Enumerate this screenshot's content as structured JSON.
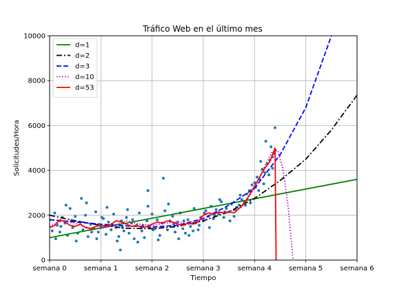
{
  "chart_data": {
    "type": "scatter",
    "title": "Tráfico Web en el último mes",
    "xlabel": "Tiempo",
    "ylabel": "Solicitudes/Hora",
    "xlim": [
      0,
      6
    ],
    "ylim": [
      0,
      10000
    ],
    "grid": true,
    "legend_position": "upper-left",
    "x_ticks": [
      {
        "value": 0,
        "label": "semana 0"
      },
      {
        "value": 1,
        "label": "semana 1"
      },
      {
        "value": 2,
        "label": "semana 2"
      },
      {
        "value": 3,
        "label": "semana 3"
      },
      {
        "value": 4,
        "label": "semana 4"
      },
      {
        "value": 5,
        "label": "semana 5"
      },
      {
        "value": 6,
        "label": "semana 6"
      }
    ],
    "y_ticks": [
      {
        "value": 0,
        "label": "0"
      },
      {
        "value": 2000,
        "label": "2000"
      },
      {
        "value": 4000,
        "label": "4000"
      },
      {
        "value": 6000,
        "label": "6000"
      },
      {
        "value": 8000,
        "label": "8000"
      },
      {
        "value": 10000,
        "label": "10000"
      }
    ],
    "scatter": {
      "color": "#1f77b4",
      "points": [
        [
          0.0,
          1800
        ],
        [
          0.05,
          1300
        ],
        [
          0.1,
          2100
        ],
        [
          0.15,
          1550
        ],
        [
          0.2,
          1250
        ],
        [
          0.25,
          1900
        ],
        [
          0.3,
          1650
        ],
        [
          0.35,
          1100
        ],
        [
          0.4,
          2300
        ],
        [
          0.45,
          1450
        ],
        [
          0.5,
          1950
        ],
        [
          0.55,
          1200
        ],
        [
          0.6,
          1700
        ],
        [
          0.65,
          1350
        ],
        [
          0.7,
          2000
        ],
        [
          0.75,
          1050
        ],
        [
          0.8,
          1600
        ],
        [
          0.85,
          1400
        ],
        [
          0.9,
          2150
        ],
        [
          0.95,
          1250
        ],
        [
          1.0,
          1500
        ],
        [
          1.05,
          1850
        ],
        [
          1.1,
          1150
        ],
        [
          1.15,
          1700
        ],
        [
          1.2,
          1350
        ],
        [
          1.25,
          2050
        ],
        [
          1.3,
          1450
        ],
        [
          1.35,
          1050
        ],
        [
          1.4,
          1750
        ],
        [
          1.45,
          1300
        ],
        [
          1.5,
          1900
        ],
        [
          1.55,
          1200
        ],
        [
          1.6,
          1650
        ],
        [
          1.65,
          950
        ],
        [
          1.7,
          1550
        ],
        [
          1.75,
          2100
        ],
        [
          1.8,
          1300
        ],
        [
          1.85,
          1000
        ],
        [
          1.9,
          1750
        ],
        [
          1.95,
          1450
        ],
        [
          2.0,
          2050
        ],
        [
          2.05,
          1400
        ],
        [
          2.1,
          1800
        ],
        [
          2.15,
          1100
        ],
        [
          2.2,
          1650
        ],
        [
          2.25,
          2200
        ],
        [
          2.3,
          1350
        ],
        [
          2.35,
          1750
        ],
        [
          2.4,
          1950
        ],
        [
          2.45,
          1250
        ],
        [
          2.5,
          1700
        ],
        [
          2.55,
          2100
        ],
        [
          2.6,
          1400
        ],
        [
          2.65,
          1200
        ],
        [
          2.7,
          1800
        ],
        [
          2.75,
          1500
        ],
        [
          2.8,
          1300
        ],
        [
          2.85,
          1650
        ],
        [
          2.9,
          1350
        ],
        [
          2.95,
          1900
        ],
        [
          3.0,
          1750
        ],
        [
          3.05,
          2200
        ],
        [
          3.1,
          1950
        ],
        [
          3.15,
          2400
        ],
        [
          3.2,
          1850
        ],
        [
          3.25,
          2250
        ],
        [
          3.3,
          2050
        ],
        [
          3.35,
          2600
        ],
        [
          3.4,
          1900
        ],
        [
          3.45,
          2300
        ],
        [
          3.5,
          2150
        ],
        [
          3.55,
          2500
        ],
        [
          3.6,
          1950
        ],
        [
          3.65,
          2350
        ],
        [
          3.7,
          2450
        ],
        [
          3.75,
          2700
        ],
        [
          3.8,
          2600
        ],
        [
          3.85,
          2950
        ],
        [
          3.9,
          3100
        ],
        [
          3.95,
          3350
        ],
        [
          4.0,
          3450
        ],
        [
          4.05,
          3700
        ],
        [
          4.1,
          3600
        ],
        [
          4.15,
          4050
        ],
        [
          4.2,
          3900
        ],
        [
          4.25,
          4300
        ],
        [
          4.3,
          4450
        ],
        [
          4.35,
          4600
        ],
        [
          4.38,
          4750
        ],
        [
          4.4,
          4900
        ],
        [
          0.12,
          950
        ],
        [
          0.32,
          2450
        ],
        [
          0.52,
          850
        ],
        [
          0.72,
          2550
        ],
        [
          0.92,
          950
        ],
        [
          1.12,
          2350
        ],
        [
          1.32,
          850
        ],
        [
          1.52,
          2250
        ],
        [
          1.72,
          800
        ],
        [
          1.92,
          2400
        ],
        [
          2.12,
          900
        ],
        [
          2.32,
          2500
        ],
        [
          2.22,
          3650
        ],
        [
          1.92,
          3100
        ],
        [
          2.52,
          950
        ],
        [
          2.82,
          2300
        ],
        [
          3.12,
          1450
        ],
        [
          3.32,
          2700
        ],
        [
          3.52,
          1750
        ],
        [
          3.72,
          2900
        ],
        [
          3.92,
          2550
        ],
        [
          4.12,
          4400
        ],
        [
          4.22,
          5300
        ],
        [
          4.32,
          5050
        ],
        [
          4.4,
          5900
        ],
        [
          4.08,
          3100
        ],
        [
          4.18,
          3400
        ],
        [
          4.28,
          3800
        ],
        [
          1.38,
          450
        ],
        [
          0.62,
          2750
        ],
        [
          0.22,
          1500
        ],
        [
          0.42,
          1750
        ],
        [
          0.82,
          1250
        ],
        [
          1.02,
          1900
        ],
        [
          1.22,
          1600
        ],
        [
          1.42,
          1450
        ],
        [
          1.62,
          1800
        ],
        [
          1.82,
          1550
        ],
        [
          2.02,
          1350
        ],
        [
          2.42,
          1600
        ],
        [
          2.62,
          1750
        ],
        [
          2.72,
          1100
        ],
        [
          2.92,
          1550
        ],
        [
          3.02,
          2100
        ],
        [
          3.22,
          2000
        ],
        [
          3.42,
          2150
        ],
        [
          3.62,
          2250
        ],
        [
          3.82,
          2450
        ],
        [
          4.02,
          3250
        ],
        [
          4.35,
          4100
        ]
      ]
    },
    "series": [
      {
        "name": "d=1",
        "color": "#008000",
        "dash": "solid",
        "points": [
          [
            0,
            1000
          ],
          [
            6,
            3600
          ]
        ]
      },
      {
        "name": "d=2",
        "color": "#000000",
        "dash": "dashdot",
        "points": [
          [
            0,
            2000
          ],
          [
            0.5,
            1750
          ],
          [
            1,
            1550
          ],
          [
            1.5,
            1420
          ],
          [
            2,
            1400
          ],
          [
            2.5,
            1500
          ],
          [
            3,
            1750
          ],
          [
            3.5,
            2150
          ],
          [
            4,
            2750
          ],
          [
            4.5,
            3550
          ],
          [
            5,
            4500
          ],
          [
            5.5,
            5800
          ],
          [
            6,
            7350
          ]
        ]
      },
      {
        "name": "d=3",
        "color": "#0000ff",
        "dash": "dashed",
        "points": [
          [
            0,
            1800
          ],
          [
            0.5,
            1700
          ],
          [
            1,
            1600
          ],
          [
            1.5,
            1520
          ],
          [
            2,
            1480
          ],
          [
            2.5,
            1550
          ],
          [
            3,
            1850
          ],
          [
            3.5,
            2450
          ],
          [
            4,
            3200
          ],
          [
            4.5,
            4700
          ],
          [
            5,
            6800
          ],
          [
            5.5,
            10000
          ]
        ]
      },
      {
        "name": "d=10",
        "color": "#bf00bf",
        "dash": "dotted",
        "points": [
          [
            0,
            1500
          ],
          [
            0.25,
            1750
          ],
          [
            0.5,
            1650
          ],
          [
            0.75,
            1450
          ],
          [
            1,
            1400
          ],
          [
            1.25,
            1550
          ],
          [
            1.5,
            1750
          ],
          [
            1.75,
            1600
          ],
          [
            2,
            1550
          ],
          [
            2.25,
            1650
          ],
          [
            2.5,
            1700
          ],
          [
            2.75,
            1600
          ],
          [
            3,
            1850
          ],
          [
            3.25,
            2100
          ],
          [
            3.5,
            2150
          ],
          [
            3.75,
            2350
          ],
          [
            4,
            3200
          ],
          [
            4.2,
            4200
          ],
          [
            4.35,
            4850
          ],
          [
            4.45,
            4900
          ],
          [
            4.55,
            4100
          ],
          [
            4.65,
            2500
          ],
          [
            4.75,
            0
          ]
        ]
      },
      {
        "name": "d=53",
        "color": "#ff0000",
        "dash": "solid",
        "points": [
          [
            0,
            1450
          ],
          [
            0.1,
            1550
          ],
          [
            0.2,
            1800
          ],
          [
            0.3,
            1700
          ],
          [
            0.4,
            1550
          ],
          [
            0.5,
            1500
          ],
          [
            0.6,
            1600
          ],
          [
            0.7,
            1450
          ],
          [
            0.8,
            1400
          ],
          [
            0.9,
            1500
          ],
          [
            1,
            1550
          ],
          [
            1.1,
            1500
          ],
          [
            1.2,
            1600
          ],
          [
            1.3,
            1750
          ],
          [
            1.4,
            1700
          ],
          [
            1.5,
            1600
          ],
          [
            1.6,
            1500
          ],
          [
            1.7,
            1550
          ],
          [
            1.8,
            1450
          ],
          [
            1.9,
            1500
          ],
          [
            2,
            1600
          ],
          [
            2.1,
            1700
          ],
          [
            2.2,
            1650
          ],
          [
            2.3,
            1750
          ],
          [
            2.4,
            1700
          ],
          [
            2.5,
            1600
          ],
          [
            2.6,
            1550
          ],
          [
            2.7,
            1650
          ],
          [
            2.8,
            1600
          ],
          [
            2.9,
            1700
          ],
          [
            3,
            2000
          ],
          [
            3.1,
            2100
          ],
          [
            3.2,
            2050
          ],
          [
            3.3,
            2150
          ],
          [
            3.4,
            2100
          ],
          [
            3.5,
            2150
          ],
          [
            3.6,
            2100
          ],
          [
            3.7,
            2300
          ],
          [
            3.8,
            2550
          ],
          [
            3.9,
            2900
          ],
          [
            4,
            3300
          ],
          [
            4.1,
            3700
          ],
          [
            4.2,
            4100
          ],
          [
            4.3,
            4400
          ],
          [
            4.4,
            5000
          ],
          [
            4.42,
            0
          ]
        ]
      }
    ]
  }
}
